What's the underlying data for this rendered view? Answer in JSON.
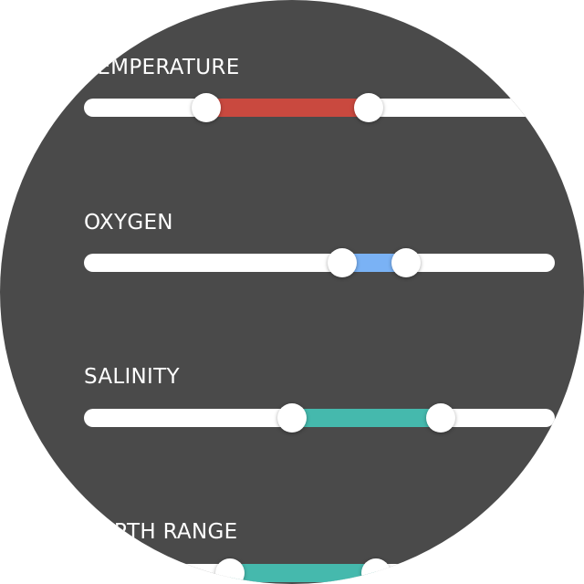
{
  "sliders": [
    {
      "id": "temperature",
      "label": "TEMPERATURE",
      "low": 0.26,
      "high": 0.605,
      "fill_color": "#c9493f"
    },
    {
      "id": "oxygen",
      "label": "OXYGEN",
      "low": 0.549,
      "high": 0.685,
      "fill_color": "#7ab2f5"
    },
    {
      "id": "salinity",
      "label": "SALINITY",
      "low": 0.442,
      "high": 0.758,
      "fill_color": "#45b9ad"
    },
    {
      "id": "depth-range",
      "label": "DEPTH RANGE",
      "low": 0.31,
      "high": 0.62,
      "fill_color": "#45b9ad"
    }
  ]
}
